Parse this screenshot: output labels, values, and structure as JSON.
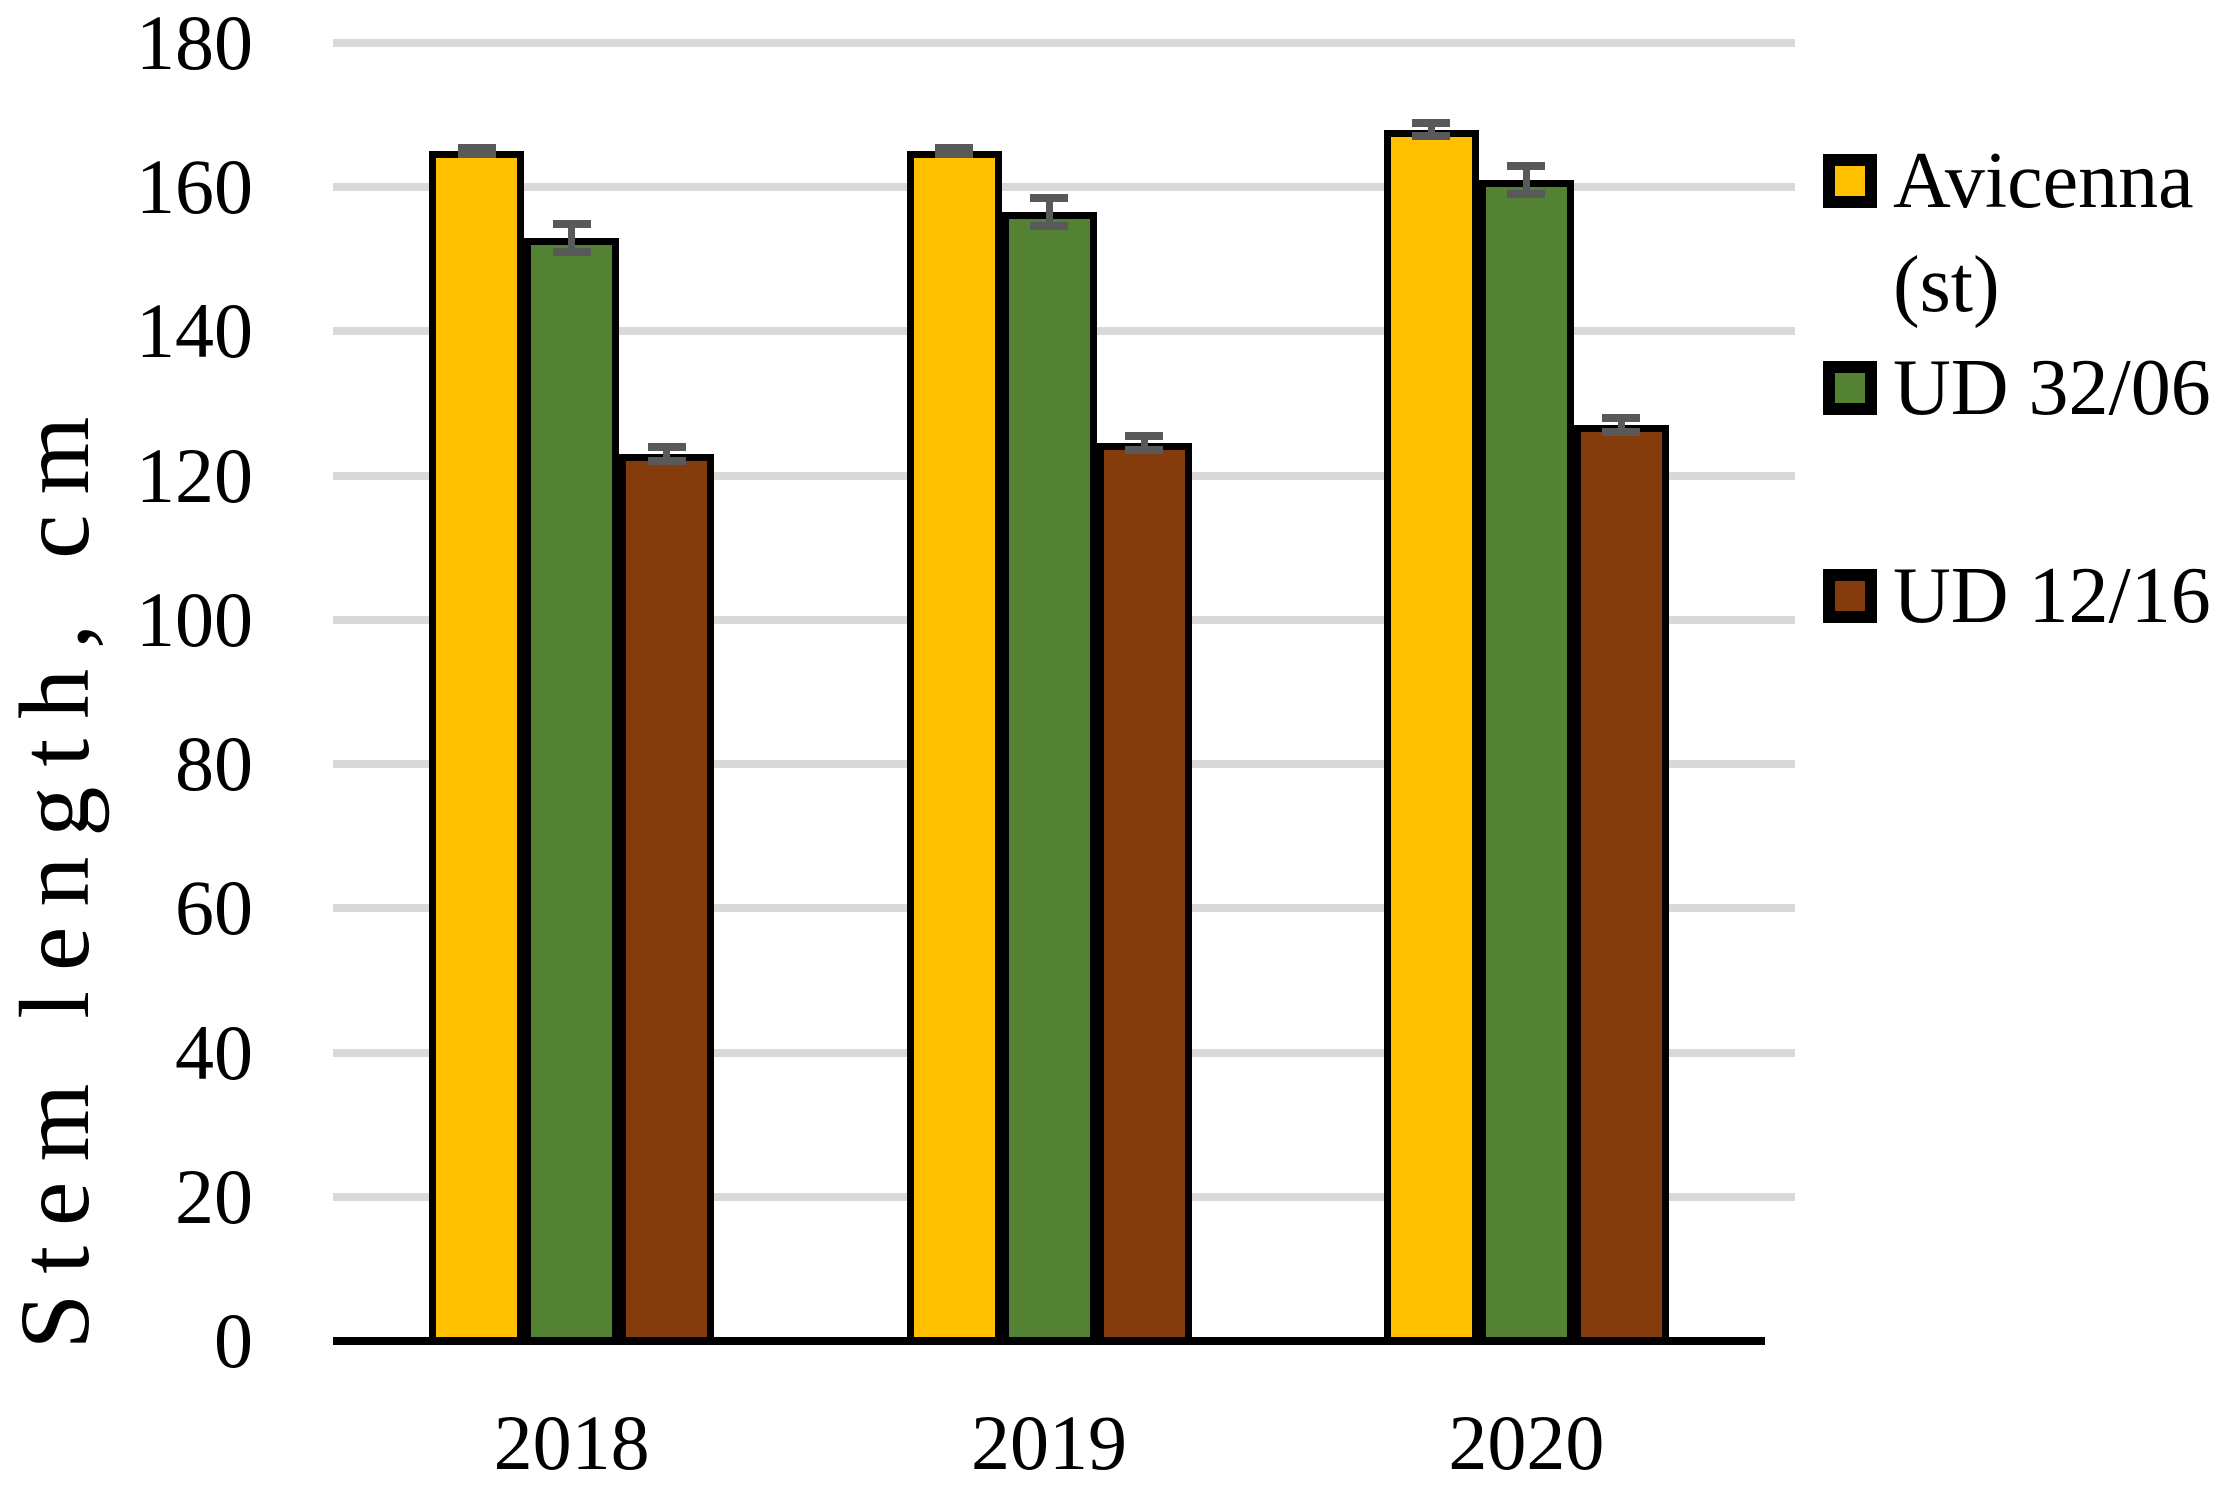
{
  "figure": {
    "background": "#FFFFFF"
  },
  "chart_data": {
    "type": "bar",
    "title": "",
    "xlabel": "",
    "ylabel": "Stem length, cm",
    "categories": [
      "2018",
      "2019",
      "2020"
    ],
    "series": [
      {
        "name": "Avicenna (st)",
        "color": "#FFC000",
        "values": [
          165,
          165,
          168
        ],
        "errors": [
          1,
          1,
          1.5
        ]
      },
      {
        "name": "UD 32/06",
        "color": "#548235",
        "values": [
          153,
          156.5,
          161
        ],
        "errors": [
          2.5,
          2.5,
          2.5
        ]
      },
      {
        "name": "UD 12/16",
        "color": "#843C0C",
        "values": [
          123,
          124.5,
          127
        ],
        "errors": [
          1.5,
          1.5,
          1.5
        ]
      }
    ],
    "ylim": [
      0,
      180
    ],
    "ytick_step": 20,
    "yticks": [
      0,
      20,
      40,
      60,
      80,
      100,
      120,
      140,
      160,
      180
    ],
    "grid": true,
    "error_bars": true,
    "legend_position": "right"
  },
  "colors": {
    "gridline": "#D9D9D9",
    "axis_line": "#000000",
    "bar_border": "#000000",
    "error_bar": "#595959",
    "text": "#000000"
  }
}
